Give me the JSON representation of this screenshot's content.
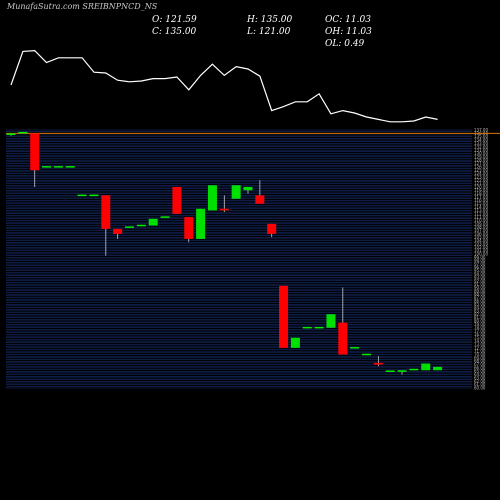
{
  "header": {
    "title": "MunafaSutra.com  SREIBNPNCD_NS",
    "open": "O: 121.59",
    "high": "H: 135.00",
    "change": "OC: 11.03",
    "close": "C: 135.00",
    "low": "L: 121.00",
    "oh": "OH: 11.03",
    "ol": "OL: 0.49"
  },
  "colors": {
    "up": "#00e000",
    "down": "#ff0000",
    "neutral": "#00ee00",
    "wick": "#c8c8c8",
    "line": "#ffffff",
    "gridline": "#1c3a8a",
    "reference": "#e07800"
  },
  "chart_data": {
    "type": "candlestick",
    "ylim": [
      60,
      137
    ],
    "reference_price": 136,
    "candles": [
      {
        "o": 135.5,
        "h": 135.8,
        "l": 135.3,
        "c": 136.0
      },
      {
        "o": 136.2,
        "h": 136.4,
        "l": 136.0,
        "c": 136.3
      },
      {
        "o": 136.0,
        "h": 136.0,
        "l": 120.0,
        "c": 125.0
      },
      {
        "o": 126.0,
        "h": 126.2,
        "l": 125.8,
        "c": 126.0
      },
      {
        "o": 126.0,
        "h": 126.2,
        "l": 125.8,
        "c": 126.0
      },
      {
        "o": 126.0,
        "h": 126.2,
        "l": 125.8,
        "c": 126.0
      },
      {
        "o": 117.5,
        "h": 117.7,
        "l": 117.3,
        "c": 117.5
      },
      {
        "o": 117.5,
        "h": 117.7,
        "l": 117.3,
        "c": 117.5
      },
      {
        "o": 117.5,
        "h": 117.5,
        "l": 99.5,
        "c": 107.5
      },
      {
        "o": 107.5,
        "h": 107.5,
        "l": 104.5,
        "c": 106.0
      },
      {
        "o": 108.0,
        "h": 108.2,
        "l": 107.8,
        "c": 108.0
      },
      {
        "o": 108.5,
        "h": 108.7,
        "l": 108.3,
        "c": 108.5
      },
      {
        "o": 108.5,
        "h": 110.5,
        "l": 108.5,
        "c": 110.5
      },
      {
        "o": 111.0,
        "h": 111.2,
        "l": 110.8,
        "c": 111.0
      },
      {
        "o": 120.0,
        "h": 120.0,
        "l": 112.0,
        "c": 112.0
      },
      {
        "o": 111.0,
        "h": 111.0,
        "l": 103.5,
        "c": 104.5
      },
      {
        "o": 104.5,
        "h": 113.5,
        "l": 104.5,
        "c": 113.5
      },
      {
        "o": 113.0,
        "h": 120.5,
        "l": 113.0,
        "c": 120.5
      },
      {
        "o": 113.5,
        "h": 117.5,
        "l": 112.5,
        "c": 113.0
      },
      {
        "o": 116.5,
        "h": 120.5,
        "l": 116.5,
        "c": 120.5
      },
      {
        "o": 119.0,
        "h": 120.0,
        "l": 118.0,
        "c": 120.0
      },
      {
        "o": 117.5,
        "h": 122.0,
        "l": 115.0,
        "c": 115.0
      },
      {
        "o": 109.0,
        "h": 109.0,
        "l": 105.0,
        "c": 106.0
      },
      {
        "o": 90.5,
        "h": 90.5,
        "l": 72.0,
        "c": 72.0
      },
      {
        "o": 72.0,
        "h": 75.0,
        "l": 72.0,
        "c": 75.0
      },
      {
        "o": 78.0,
        "h": 78.2,
        "l": 77.8,
        "c": 78.0
      },
      {
        "o": 78.0,
        "h": 78.2,
        "l": 77.8,
        "c": 78.0
      },
      {
        "o": 78.0,
        "h": 82.0,
        "l": 78.0,
        "c": 82.0
      },
      {
        "o": 79.5,
        "h": 90.0,
        "l": 70.0,
        "c": 70.0
      },
      {
        "o": 72.0,
        "h": 72.2,
        "l": 71.8,
        "c": 72.0
      },
      {
        "o": 70.0,
        "h": 70.2,
        "l": 69.8,
        "c": 70.0
      },
      {
        "o": 67.5,
        "h": 69.5,
        "l": 66.5,
        "c": 67.0
      },
      {
        "o": 65.0,
        "h": 65.2,
        "l": 64.8,
        "c": 65.0
      },
      {
        "o": 64.8,
        "h": 65.3,
        "l": 64.0,
        "c": 65.3
      },
      {
        "o": 65.5,
        "h": 65.7,
        "l": 65.3,
        "c": 65.5
      },
      {
        "o": 65.3,
        "h": 67.3,
        "l": 65.3,
        "c": 67.3
      },
      {
        "o": 65.3,
        "h": 66.3,
        "l": 65.3,
        "c": 66.3
      }
    ],
    "volume_line": [
      0.5,
      0.92,
      0.93,
      0.78,
      0.84,
      0.84,
      0.84,
      0.66,
      0.65,
      0.56,
      0.54,
      0.55,
      0.58,
      0.58,
      0.6,
      0.44,
      0.62,
      0.76,
      0.62,
      0.73,
      0.7,
      0.61,
      0.18,
      0.23,
      0.29,
      0.29,
      0.39,
      0.14,
      0.18,
      0.15,
      0.1,
      0.07,
      0.04,
      0.04,
      0.05,
      0.1,
      0.07
    ]
  }
}
